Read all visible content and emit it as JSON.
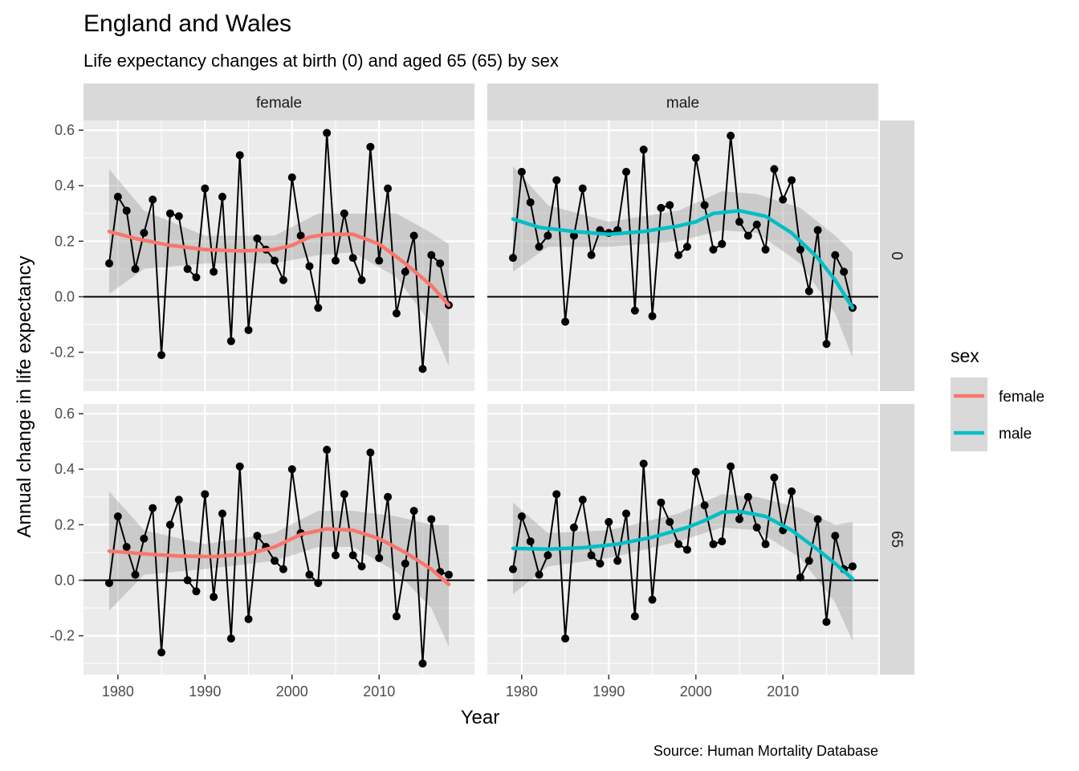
{
  "title": "England and Wales",
  "subtitle": "Life expectancy changes at birth (0) and aged 65 (65) by sex",
  "caption": "Source: Human Mortality Database",
  "colors": {
    "female": "#F8766D",
    "male": "#00BFC4",
    "panel_bg": "#EBEBEB",
    "strip_bg": "#D9D9D9",
    "ribbon": "#999999"
  },
  "chart_data": {
    "type": "line",
    "facets": {
      "cols": [
        "female",
        "male"
      ],
      "rows": [
        "0",
        "65"
      ]
    },
    "xlabel": "Year",
    "ylabel": "Annual change in life expectancy",
    "xlim": [
      1976.05,
      2020.95
    ],
    "ylim": [
      -0.34,
      0.635
    ],
    "x_ticks": [
      1980,
      1990,
      2000,
      2010
    ],
    "y_ticks": [
      -0.2,
      0.0,
      0.2,
      0.4,
      0.6
    ],
    "y_tick_labels": [
      "-0.2",
      "0.0",
      "0.2",
      "0.4",
      "0.6"
    ],
    "x_tick_labels": [
      "1980",
      "1990",
      "2000",
      "2010"
    ],
    "hline": 0,
    "legend": {
      "title": "sex",
      "entries": [
        "female",
        "male"
      ],
      "position": "right"
    },
    "years": [
      1979,
      1980,
      1981,
      1982,
      1983,
      1984,
      1985,
      1986,
      1987,
      1988,
      1989,
      1990,
      1991,
      1992,
      1993,
      1994,
      1995,
      1996,
      1997,
      1998,
      1999,
      2000,
      2001,
      2002,
      2003,
      2004,
      2005,
      2006,
      2007,
      2008,
      2009,
      2010,
      2011,
      2012,
      2013,
      2014,
      2015,
      2016,
      2017,
      2018
    ],
    "panels": [
      {
        "sex": "female",
        "age": "0",
        "values": [
          0.12,
          0.36,
          0.31,
          0.1,
          0.23,
          0.35,
          -0.21,
          0.3,
          0.29,
          0.1,
          0.07,
          0.39,
          0.09,
          0.36,
          -0.16,
          0.51,
          -0.12,
          0.21,
          0.17,
          0.13,
          0.06,
          0.43,
          0.22,
          0.11,
          -0.04,
          0.59,
          0.13,
          0.3,
          0.14,
          0.06,
          0.54,
          0.13,
          0.39,
          -0.06,
          0.09,
          0.22,
          -0.26,
          0.15,
          0.12,
          -0.03
        ],
        "smooth": [
          [
            1979,
            0.235
          ],
          [
            1982,
            0.21
          ],
          [
            1986,
            0.185
          ],
          [
            1990,
            0.17
          ],
          [
            1994,
            0.165
          ],
          [
            1998,
            0.17
          ],
          [
            2000,
            0.185
          ],
          [
            2002,
            0.215
          ],
          [
            2004,
            0.225
          ],
          [
            2007,
            0.225
          ],
          [
            2010,
            0.19
          ],
          [
            2013,
            0.12
          ],
          [
            2016,
            0.04
          ],
          [
            2018,
            -0.03
          ]
        ],
        "ribbon": [
          [
            1979,
            0.01,
            0.46
          ],
          [
            1983,
            0.1,
            0.31
          ],
          [
            1990,
            0.12,
            0.22
          ],
          [
            1998,
            0.12,
            0.22
          ],
          [
            2003,
            0.15,
            0.3
          ],
          [
            2007,
            0.16,
            0.3
          ],
          [
            2012,
            0.07,
            0.3
          ],
          [
            2016,
            -0.1,
            0.23
          ],
          [
            2018,
            -0.25,
            0.19
          ]
        ]
      },
      {
        "sex": "male",
        "age": "0",
        "values": [
          0.14,
          0.45,
          0.34,
          0.18,
          0.22,
          0.42,
          -0.09,
          0.22,
          0.39,
          0.15,
          0.24,
          0.23,
          0.24,
          0.45,
          -0.05,
          0.53,
          -0.07,
          0.32,
          0.33,
          0.15,
          0.18,
          0.5,
          0.33,
          0.17,
          0.19,
          0.58,
          0.27,
          0.22,
          0.26,
          0.17,
          0.46,
          0.35,
          0.42,
          0.17,
          0.02,
          0.24,
          -0.17,
          0.15,
          0.09,
          -0.04
        ],
        "smooth": [
          [
            1979,
            0.28
          ],
          [
            1982,
            0.25
          ],
          [
            1986,
            0.235
          ],
          [
            1990,
            0.225
          ],
          [
            1994,
            0.235
          ],
          [
            1998,
            0.255
          ],
          [
            2000,
            0.27
          ],
          [
            2002,
            0.3
          ],
          [
            2005,
            0.31
          ],
          [
            2008,
            0.29
          ],
          [
            2011,
            0.23
          ],
          [
            2014,
            0.14
          ],
          [
            2016,
            0.06
          ],
          [
            2018,
            -0.04
          ]
        ],
        "ribbon": [
          [
            1979,
            0.09,
            0.47
          ],
          [
            1983,
            0.18,
            0.33
          ],
          [
            1990,
            0.18,
            0.27
          ],
          [
            1998,
            0.2,
            0.31
          ],
          [
            2003,
            0.24,
            0.38
          ],
          [
            2007,
            0.23,
            0.37
          ],
          [
            2012,
            0.12,
            0.32
          ],
          [
            2016,
            -0.06,
            0.22
          ],
          [
            2018,
            -0.22,
            0.16
          ]
        ]
      },
      {
        "sex": "female",
        "age": "65",
        "values": [
          -0.01,
          0.23,
          0.12,
          0.02,
          0.15,
          0.26,
          -0.26,
          0.2,
          0.29,
          0.0,
          -0.04,
          0.31,
          -0.06,
          0.24,
          -0.21,
          0.41,
          -0.14,
          0.16,
          0.12,
          0.07,
          0.04,
          0.4,
          0.17,
          0.02,
          -0.01,
          0.47,
          0.09,
          0.31,
          0.09,
          0.05,
          0.46,
          0.08,
          0.3,
          -0.13,
          0.06,
          0.25,
          -0.3,
          0.22,
          0.03,
          0.02
        ],
        "smooth": [
          [
            1979,
            0.105
          ],
          [
            1983,
            0.095
          ],
          [
            1987,
            0.087
          ],
          [
            1991,
            0.085
          ],
          [
            1995,
            0.095
          ],
          [
            1998,
            0.12
          ],
          [
            2001,
            0.165
          ],
          [
            2004,
            0.185
          ],
          [
            2007,
            0.18
          ],
          [
            2010,
            0.15
          ],
          [
            2013,
            0.1
          ],
          [
            2016,
            0.04
          ],
          [
            2018,
            -0.015
          ]
        ],
        "ribbon": [
          [
            1979,
            -0.11,
            0.32
          ],
          [
            1983,
            0.02,
            0.18
          ],
          [
            1990,
            0.04,
            0.13
          ],
          [
            1998,
            0.07,
            0.17
          ],
          [
            2003,
            0.12,
            0.25
          ],
          [
            2007,
            0.12,
            0.25
          ],
          [
            2012,
            0.03,
            0.23
          ],
          [
            2016,
            -0.1,
            0.2
          ],
          [
            2018,
            -0.24,
            0.2
          ]
        ]
      },
      {
        "sex": "male",
        "age": "65",
        "values": [
          0.04,
          0.23,
          0.14,
          0.02,
          0.09,
          0.31,
          -0.21,
          0.19,
          0.29,
          0.09,
          0.06,
          0.21,
          0.07,
          0.24,
          -0.13,
          0.42,
          -0.07,
          0.28,
          0.21,
          0.13,
          0.11,
          0.39,
          0.27,
          0.13,
          0.14,
          0.41,
          0.22,
          0.3,
          0.19,
          0.13,
          0.37,
          0.18,
          0.32,
          0.01,
          0.07,
          0.22,
          -0.15,
          0.16,
          0.04,
          0.05
        ],
        "smooth": [
          [
            1979,
            0.115
          ],
          [
            1983,
            0.112
          ],
          [
            1987,
            0.117
          ],
          [
            1991,
            0.13
          ],
          [
            1995,
            0.155
          ],
          [
            1999,
            0.19
          ],
          [
            2001,
            0.215
          ],
          [
            2003,
            0.245
          ],
          [
            2005,
            0.248
          ],
          [
            2008,
            0.23
          ],
          [
            2011,
            0.18
          ],
          [
            2014,
            0.11
          ],
          [
            2016,
            0.06
          ],
          [
            2018,
            0.005
          ]
        ],
        "ribbon": [
          [
            1979,
            -0.05,
            0.28
          ],
          [
            1983,
            0.05,
            0.17
          ],
          [
            1990,
            0.08,
            0.18
          ],
          [
            1998,
            0.14,
            0.24
          ],
          [
            2003,
            0.19,
            0.31
          ],
          [
            2007,
            0.18,
            0.3
          ],
          [
            2012,
            0.08,
            0.26
          ],
          [
            2016,
            -0.08,
            0.2
          ],
          [
            2018,
            -0.22,
            0.21
          ]
        ]
      }
    ]
  }
}
